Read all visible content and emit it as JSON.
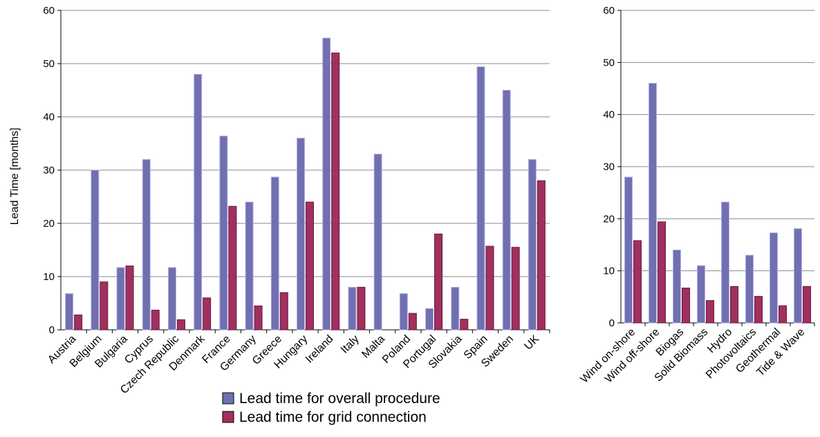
{
  "chart_data": [
    {
      "type": "bar",
      "ylabel": "Lead Time [months]",
      "ylim": [
        0,
        60
      ],
      "yticks": [
        0,
        10,
        20,
        30,
        40,
        50,
        60
      ],
      "grid": true,
      "categories": [
        "Austria",
        "Belgium",
        "Bulgaria",
        "Cyprus",
        "Czech Republic",
        "Denmark",
        "France",
        "Germany",
        "Greece",
        "Hungary",
        "Ireland",
        "Italy",
        "Malta",
        "Poland",
        "Portugal",
        "Slovakia",
        "Spain",
        "Sweden",
        "UK"
      ],
      "series": [
        {
          "name": "Lead time for overall procedure",
          "color": "#7070b0",
          "values": [
            6.8,
            30,
            11.7,
            32,
            11.7,
            48,
            36.4,
            24,
            28.7,
            36,
            54.8,
            8,
            33,
            6.8,
            4,
            8,
            49.4,
            45,
            32
          ]
        },
        {
          "name": "Lead time for grid connection",
          "color": "#a0305e",
          "values": [
            2.8,
            9,
            12,
            3.7,
            1.9,
            6,
            23.2,
            4.5,
            7,
            24,
            52,
            8,
            0,
            3.1,
            18,
            2,
            15.7,
            15.5,
            28
          ]
        }
      ],
      "legend_position": "bottom"
    },
    {
      "type": "bar",
      "ylim": [
        0,
        60
      ],
      "yticks": [
        0,
        10,
        20,
        30,
        40,
        50,
        60
      ],
      "grid": true,
      "categories": [
        "Wind on-shore",
        "Wind off-shore",
        "Biogas",
        "Solid Biomass",
        "Hydro",
        "Photovoltaics",
        "Geothermal",
        "Tide & Wave"
      ],
      "series": [
        {
          "name": "Lead time for overall procedure",
          "color": "#7070b0",
          "values": [
            28,
            46,
            14,
            11,
            23.2,
            13,
            17.3,
            18.1
          ]
        },
        {
          "name": "Lead time for grid connection",
          "color": "#a0305e",
          "values": [
            15.8,
            19.4,
            6.7,
            4.3,
            7,
            5.1,
            3.3,
            7
          ]
        }
      ]
    }
  ]
}
